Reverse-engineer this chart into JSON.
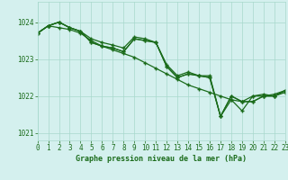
{
  "title": "Graphe pression niveau de la mer (hPa)",
  "background_color": "#d4f0ee",
  "grid_color": "#a8d8cc",
  "line_color": "#1a6b1a",
  "xlim": [
    0,
    23
  ],
  "ylim": [
    1020.8,
    1024.55
  ],
  "yticks": [
    1021,
    1022,
    1023,
    1024
  ],
  "xticks": [
    0,
    1,
    2,
    3,
    4,
    5,
    6,
    7,
    8,
    9,
    10,
    11,
    12,
    13,
    14,
    15,
    16,
    17,
    18,
    19,
    20,
    21,
    22,
    23
  ],
  "series": [
    [
      1023.7,
      1023.9,
      1023.85,
      1023.8,
      1023.7,
      1023.5,
      1023.35,
      1023.25,
      1023.15,
      1023.05,
      1022.9,
      1022.75,
      1022.6,
      1022.45,
      1022.3,
      1022.2,
      1022.1,
      1022.0,
      1021.9,
      1021.85,
      1022.0,
      1022.05,
      1022.0,
      1022.1
    ],
    [
      1023.7,
      1023.9,
      1024.0,
      1023.85,
      1023.75,
      1023.45,
      1023.35,
      1023.3,
      1023.2,
      1023.55,
      1023.5,
      1023.45,
      1022.8,
      1022.5,
      1022.6,
      1022.55,
      1022.5,
      1021.45,
      1021.9,
      1021.6,
      1022.0,
      1022.0,
      1022.0,
      1022.15
    ],
    [
      1023.7,
      1023.9,
      1024.0,
      1023.85,
      1023.75,
      1023.45,
      1023.35,
      1023.3,
      1023.2,
      1023.55,
      1023.5,
      1023.45,
      1022.8,
      1022.5,
      1022.6,
      1022.55,
      1022.5,
      1021.45,
      1022.0,
      1021.85,
      1021.85,
      1022.0,
      1022.0,
      1022.15
    ],
    [
      1023.7,
      1023.9,
      1024.0,
      1023.85,
      1023.75,
      1023.55,
      1023.45,
      1023.38,
      1023.3,
      1023.6,
      1023.55,
      1023.45,
      1022.85,
      1022.55,
      1022.65,
      1022.55,
      1022.55,
      1021.45,
      1022.0,
      1021.85,
      1021.85,
      1022.0,
      1022.05,
      1022.15
    ]
  ]
}
